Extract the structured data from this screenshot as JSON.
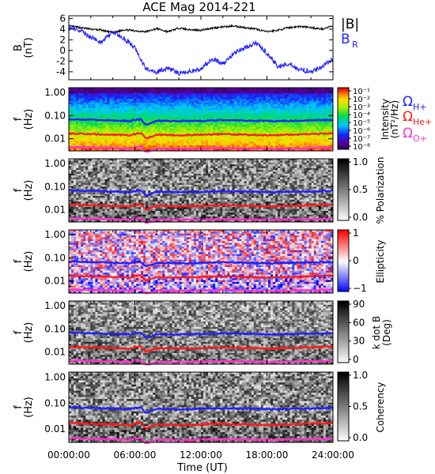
{
  "title": "ACE Mag 2014-221",
  "x_axis": {
    "label": "Time (UT)",
    "ticks": [
      "00:00:00",
      "06:00:00",
      "12:00:00",
      "18:00:00",
      "24:00:00"
    ],
    "range_hours": [
      0,
      24
    ]
  },
  "colors": {
    "B_total": "#000000",
    "B_R": "#1f1fff",
    "omega_h": "#1f1fff",
    "omega_he": "#ff1a1a",
    "omega_o": "#ff33cc"
  },
  "chart_data": [
    {
      "type": "line",
      "panel": "magnetic-field",
      "ylabel": [
        "B",
        "(nT)"
      ],
      "ylim": [
        -5.5,
        6.5
      ],
      "yticks": [
        "6",
        "4",
        "2",
        "0",
        "-2",
        "-4"
      ],
      "ytick_values": [
        6,
        4,
        2,
        0,
        -2,
        -4
      ],
      "legend": [
        "|B|",
        "B"
      ],
      "legend_subscript": "R",
      "series": [
        {
          "name": "|B|",
          "x": [
            0,
            1,
            2,
            3,
            4,
            5,
            6,
            7,
            8,
            9,
            10,
            11,
            12,
            13,
            14,
            15,
            16,
            17,
            18,
            19,
            20,
            21,
            22,
            23,
            24
          ],
          "values": [
            4.6,
            4.3,
            4.0,
            3.8,
            3.3,
            3.9,
            3.7,
            3.5,
            4.1,
            3.5,
            4.2,
            3.9,
            3.8,
            4.2,
            4.4,
            4.6,
            4.3,
            4.0,
            3.5,
            3.8,
            4.3,
            4.5,
            4.3,
            4.0,
            4.6
          ]
        },
        {
          "name": "B",
          "x": [
            0,
            1,
            2,
            3,
            4,
            5,
            6,
            7,
            8,
            9,
            10,
            11,
            12,
            13,
            14,
            15,
            16,
            17,
            18,
            19,
            20,
            21,
            22,
            23,
            24
          ],
          "values": [
            4.2,
            3.8,
            2.5,
            1.5,
            3.5,
            2.2,
            0.5,
            -3.5,
            -4.0,
            -3.3,
            -4.3,
            -3.9,
            -3.5,
            -1.5,
            -2.5,
            -0.5,
            0.5,
            1.5,
            -0.5,
            -3.0,
            -2.5,
            -3.5,
            -4.0,
            -3.0,
            -1.5
          ]
        }
      ]
    },
    {
      "type": "heatmap",
      "panel": "intensity",
      "ylabel": [
        "f",
        "(Hz)"
      ],
      "yticks": [
        "1.00",
        "0.10",
        "0.01"
      ],
      "colorbar_label": [
        "Intensity",
        "(nT²/Hz)"
      ],
      "colorbar_ticks": [
        "10⁻¹",
        "10⁻²",
        "10⁻³",
        "10⁻⁴",
        "10⁻⁵",
        "10⁻⁶",
        "10⁻⁷",
        "10⁻⁸"
      ],
      "legend": [
        "Ω",
        "Ω",
        "Ω"
      ],
      "legend_subscripts": [
        "H+",
        "He+",
        "O+"
      ]
    },
    {
      "type": "heatmap",
      "panel": "polarization",
      "ylabel": [
        "f",
        "(Hz)"
      ],
      "yticks": [
        "1.00",
        "0.10",
        "0.01"
      ],
      "colorbar_label": [
        "% Polarization"
      ],
      "colorbar_ticks": [
        "1.0",
        "0.5",
        "0.0"
      ]
    },
    {
      "type": "heatmap",
      "panel": "ellipticity",
      "ylabel": [
        "f",
        "(Hz)"
      ],
      "yticks": [
        "1.00",
        "0.10",
        "0.01"
      ],
      "colorbar_label": [
        "Ellipticity"
      ],
      "colorbar_ticks": [
        "1",
        "0",
        "−1"
      ]
    },
    {
      "type": "heatmap",
      "panel": "k-dot-b",
      "ylabel": [
        "f",
        "(Hz)"
      ],
      "yticks": [
        "1.00",
        "0.10",
        "0.01"
      ],
      "colorbar_label": [
        "k dot B",
        "(Deg)"
      ],
      "colorbar_ticks": [
        "90",
        "60",
        "30",
        "0"
      ]
    },
    {
      "type": "heatmap",
      "panel": "coherency",
      "ylabel": [
        "f",
        "(Hz)"
      ],
      "yticks": [
        "1.00",
        "0.10",
        "0.01"
      ],
      "colorbar_label": [
        "Coherency"
      ],
      "colorbar_ticks": [
        "1.0",
        "0.5",
        "0.0"
      ]
    }
  ],
  "gyrofrequency_hz": {
    "hours": [
      0,
      2,
      4,
      5.5,
      6.5,
      7,
      8,
      10,
      12,
      14,
      16,
      18,
      20,
      22,
      24
    ],
    "omega_h": [
      0.07,
      0.066,
      0.062,
      0.058,
      0.07,
      0.04,
      0.06,
      0.058,
      0.06,
      0.064,
      0.062,
      0.058,
      0.06,
      0.062,
      0.066
    ],
    "omega_he": [
      0.017,
      0.016,
      0.015,
      0.014,
      0.018,
      0.01,
      0.015,
      0.014,
      0.015,
      0.016,
      0.015,
      0.014,
      0.015,
      0.016,
      0.017
    ],
    "omega_o": [
      0.0044,
      0.0042,
      0.004,
      0.0037,
      0.0046,
      0.0027,
      0.0038,
      0.0037,
      0.0038,
      0.004,
      0.0039,
      0.0037,
      0.0038,
      0.004,
      0.0042
    ]
  }
}
